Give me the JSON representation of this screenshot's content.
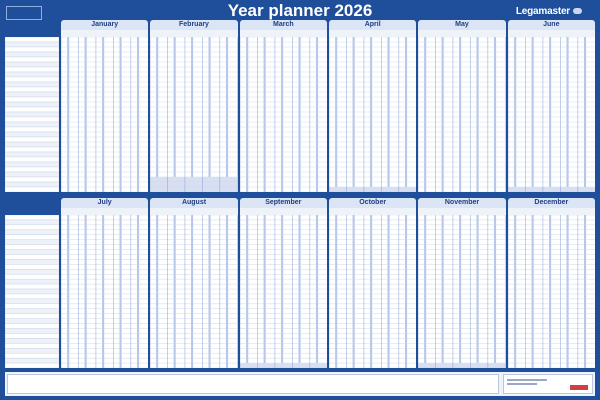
{
  "title": "Year planner 2026",
  "brand": "Legamaster",
  "colors": {
    "background": "#1f4f9a",
    "tab": "#dbe5f5",
    "grid_line": "#c3cfe6",
    "weekend": "#b7c7ea",
    "row_alt": "#edf1f8"
  },
  "months_top": [
    "January",
    "February",
    "March",
    "April",
    "May",
    "June"
  ],
  "months_bottom": [
    "July",
    "August",
    "September",
    "October",
    "November",
    "December"
  ],
  "days_in_month": [
    31,
    28,
    31,
    30,
    31,
    30,
    31,
    31,
    30,
    31,
    30,
    31
  ],
  "rows": 31,
  "icons": {
    "logo": "certification-logo-icon",
    "brand_mark": "legamaster-mark-icon"
  }
}
